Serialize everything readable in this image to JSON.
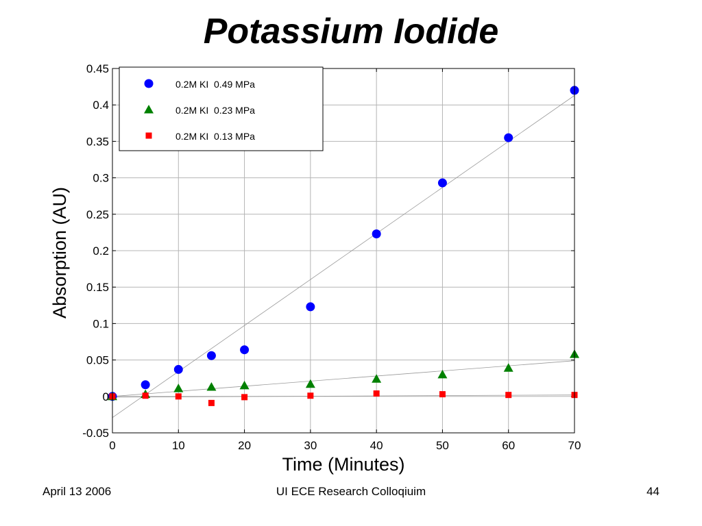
{
  "slide": {
    "title": "Potassium Iodide",
    "footer_date": "April 13 2006",
    "footer_center": "UI ECE Research Colloqiuim",
    "slide_number": "44"
  },
  "chart_data": {
    "type": "scatter",
    "title": "",
    "xlabel": "Time (Minutes)",
    "ylabel": "Absorption (AU)",
    "xlim": [
      0,
      70
    ],
    "ylim": [
      -0.05,
      0.45
    ],
    "xticks": [
      0,
      10,
      20,
      30,
      40,
      50,
      60,
      70
    ],
    "xtick_labels": [
      "0",
      "10",
      "20",
      "30",
      "40",
      "50",
      "60",
      "70"
    ],
    "yticks": [
      -0.05,
      0,
      0.05,
      0.1,
      0.15,
      0.2,
      0.25,
      0.3,
      0.35,
      0.4,
      0.45
    ],
    "ytick_labels": [
      "-0.05",
      "0",
      "0.05",
      "0.1",
      "0.15",
      "0.2",
      "0.25",
      "0.3",
      "0.35",
      "0.4",
      "0.45"
    ],
    "grid": true,
    "legend_position": "top-left",
    "series": [
      {
        "name": "0.2M KI  0.49 MPa",
        "marker": "circle",
        "color": "#0000ff",
        "x": [
          0,
          5,
          10,
          15,
          20,
          30,
          40,
          50,
          60,
          70
        ],
        "y": [
          0.0,
          0.016,
          0.037,
          0.056,
          0.064,
          0.123,
          0.223,
          0.293,
          0.355,
          0.42
        ],
        "trend": [
          [
            0,
            -0.029
          ],
          [
            70,
            0.413
          ]
        ]
      },
      {
        "name": "0.2M KI  0.23 MPa",
        "marker": "triangle",
        "color": "#008000",
        "x": [
          0,
          5,
          10,
          15,
          20,
          30,
          40,
          50,
          60,
          70
        ],
        "y": [
          0.0,
          0.003,
          0.011,
          0.013,
          0.015,
          0.017,
          0.024,
          0.03,
          0.039,
          0.058
        ],
        "trend": [
          [
            0,
            0.0
          ],
          [
            70,
            0.049
          ]
        ]
      },
      {
        "name": "0.2M KI  0.13 MPa",
        "marker": "square",
        "color": "#ff0000",
        "x": [
          0,
          5,
          10,
          15,
          20,
          30,
          40,
          50,
          60,
          70
        ],
        "y": [
          0.0,
          0.001,
          0.0,
          -0.009,
          -0.001,
          0.001,
          0.004,
          0.003,
          0.002,
          0.002
        ],
        "trend": [
          [
            0,
            -0.001
          ],
          [
            70,
            0.002
          ]
        ]
      }
    ],
    "colors": {
      "grid": "#b4b4b4",
      "trend": "#999999",
      "axis": "#000000"
    }
  }
}
